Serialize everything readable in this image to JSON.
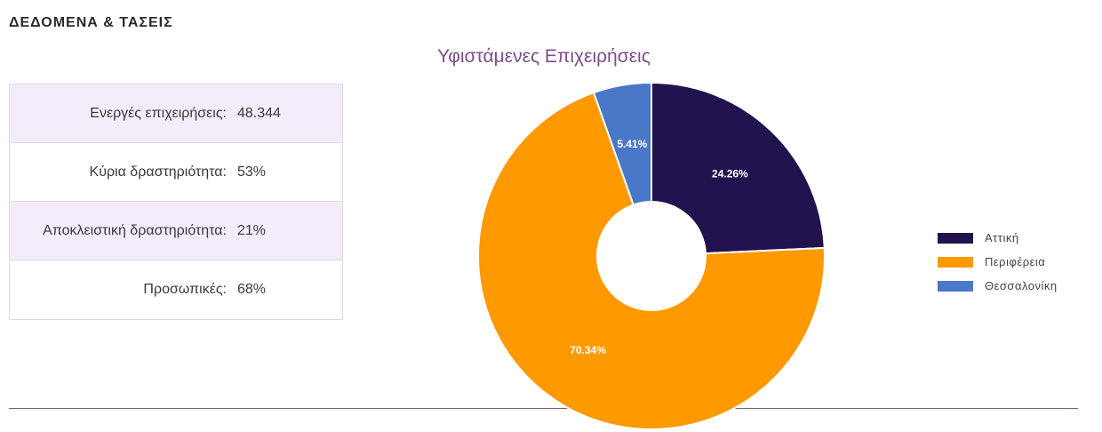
{
  "heading": "ΔΕΔΟΜΕΝΑ & ΤΑΣΕΙΣ",
  "stats": [
    {
      "label": "Ενεργές επιχειρήσεις:",
      "value": "48.344"
    },
    {
      "label": "Κύρια δραστηριότητα:",
      "value": "53%"
    },
    {
      "label": "Αποκλειστική δραστηριότητα:",
      "value": "21%"
    },
    {
      "label": "Προσωπικές:",
      "value": "68%"
    }
  ],
  "colors": {
    "shaded_row": "#f3ecfb",
    "title": "#7a4d8c",
    "divider": "#7a5f86"
  },
  "chart_data": {
    "type": "pie",
    "donut": true,
    "title": "Υφιστάμενες Επιχειρήσεις",
    "legend_position": "right",
    "slices": [
      {
        "name": "Αττική",
        "value": 24.26,
        "label": "24.26%",
        "color": "#21134d"
      },
      {
        "name": "Περιφέρεια",
        "value": 70.34,
        "label": "70.34%",
        "color": "#ff9900"
      },
      {
        "name": "Θεσσαλονίκη",
        "value": 5.41,
        "label": "5.41%",
        "color": "#4a78c9"
      }
    ]
  }
}
